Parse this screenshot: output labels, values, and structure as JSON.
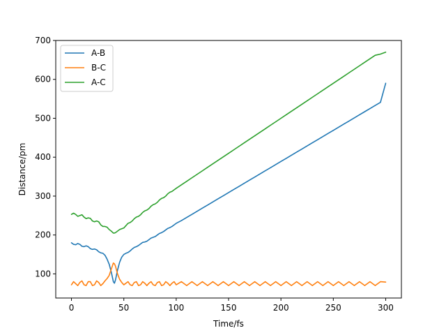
{
  "chart_data": {
    "type": "line",
    "title": "",
    "xlabel": "Time/fs",
    "ylabel": "Distance/pm",
    "xlim": [
      -15,
      315
    ],
    "ylim": [
      38,
      700
    ],
    "xticks": [
      0,
      50,
      100,
      150,
      200,
      250,
      300
    ],
    "yticks": [
      100,
      200,
      300,
      400,
      500,
      600,
      700
    ],
    "grid": false,
    "legend_position": "top-left",
    "series": [
      {
        "name": "A-B",
        "color": "#1f77b4",
        "x": [
          0,
          2,
          4,
          6,
          8,
          10,
          12,
          14,
          16,
          18,
          20,
          22,
          24,
          26,
          28,
          30,
          32,
          34,
          36,
          38,
          40,
          41,
          42,
          44,
          46,
          48,
          50,
          52,
          54,
          56,
          58,
          60,
          62,
          64,
          66,
          68,
          70,
          72,
          74,
          76,
          78,
          80,
          82,
          84,
          86,
          88,
          90,
          92,
          94,
          96,
          98,
          100,
          105,
          110,
          115,
          120,
          125,
          130,
          135,
          140,
          145,
          150,
          155,
          160,
          165,
          170,
          175,
          180,
          185,
          190,
          195,
          200,
          205,
          210,
          215,
          220,
          225,
          230,
          235,
          240,
          245,
          250,
          255,
          260,
          265,
          270,
          275,
          280,
          285,
          290,
          295,
          300
        ],
        "y": [
          180,
          176,
          175,
          178,
          176,
          171,
          170,
          172,
          170,
          165,
          163,
          164,
          162,
          157,
          154,
          153,
          148,
          138,
          125,
          105,
          80,
          76,
          84,
          110,
          130,
          143,
          150,
          153,
          155,
          159,
          164,
          168,
          170,
          173,
          177,
          181,
          182,
          184,
          188,
          192,
          194,
          196,
          200,
          204,
          206,
          209,
          213,
          217,
          219,
          222,
          226,
          230,
          237,
          245,
          253,
          261,
          269,
          277,
          285,
          293,
          301,
          309,
          317,
          325,
          333,
          341,
          349,
          357,
          365,
          373,
          381,
          389,
          397,
          405,
          413,
          421,
          429,
          437,
          445,
          453,
          461,
          469,
          477,
          485,
          493,
          501,
          509,
          517,
          525,
          533,
          541,
          590
        ]
      },
      {
        "name": "B-C",
        "color": "#ff7f0e",
        "x": [
          0,
          2,
          4,
          6,
          8,
          10,
          12,
          14,
          16,
          18,
          20,
          22,
          24,
          26,
          28,
          30,
          32,
          34,
          36,
          38,
          40,
          41,
          42,
          44,
          46,
          48,
          50,
          52,
          54,
          56,
          58,
          60,
          62,
          64,
          66,
          68,
          70,
          72,
          74,
          76,
          78,
          80,
          82,
          84,
          86,
          88,
          90,
          92,
          94,
          96,
          98,
          100,
          105,
          110,
          115,
          120,
          125,
          130,
          135,
          140,
          145,
          150,
          155,
          160,
          165,
          170,
          175,
          180,
          185,
          190,
          195,
          200,
          205,
          210,
          215,
          220,
          225,
          230,
          235,
          240,
          245,
          250,
          255,
          260,
          265,
          270,
          275,
          280,
          285,
          290,
          295,
          300
        ],
        "y": [
          72,
          80,
          75,
          70,
          78,
          82,
          72,
          70,
          80,
          80,
          70,
          72,
          82,
          78,
          70,
          75,
          82,
          88,
          96,
          112,
          128,
          126,
          120,
          100,
          86,
          78,
          72,
          76,
          80,
          72,
          70,
          78,
          80,
          70,
          72,
          80,
          76,
          70,
          76,
          80,
          72,
          70,
          78,
          80,
          70,
          72,
          80,
          76,
          70,
          76,
          80,
          72,
          80,
          70,
          80,
          70,
          80,
          70,
          80,
          70,
          80,
          70,
          80,
          70,
          80,
          70,
          80,
          70,
          80,
          70,
          80,
          70,
          80,
          70,
          80,
          70,
          80,
          70,
          80,
          70,
          80,
          70,
          80,
          70,
          80,
          70,
          80,
          70,
          80,
          70,
          80,
          79
        ]
      },
      {
        "name": "A-C",
        "color": "#2ca02c",
        "x": [
          0,
          2,
          4,
          6,
          8,
          10,
          12,
          14,
          16,
          18,
          20,
          22,
          24,
          26,
          28,
          30,
          32,
          34,
          36,
          38,
          40,
          41,
          42,
          44,
          46,
          48,
          50,
          52,
          54,
          56,
          58,
          60,
          62,
          64,
          66,
          68,
          70,
          72,
          74,
          76,
          78,
          80,
          82,
          84,
          86,
          88,
          90,
          92,
          94,
          96,
          98,
          100,
          105,
          110,
          115,
          120,
          125,
          130,
          135,
          140,
          145,
          150,
          155,
          160,
          165,
          170,
          175,
          180,
          185,
          190,
          195,
          200,
          205,
          210,
          215,
          220,
          225,
          230,
          235,
          240,
          245,
          250,
          255,
          260,
          265,
          270,
          275,
          280,
          285,
          290,
          295,
          300
        ],
        "y": [
          253,
          256,
          253,
          248,
          250,
          252,
          246,
          242,
          244,
          243,
          236,
          234,
          236,
          234,
          226,
          222,
          222,
          220,
          214,
          210,
          205,
          205,
          206,
          210,
          214,
          216,
          218,
          224,
          230,
          232,
          236,
          242,
          246,
          248,
          252,
          258,
          262,
          264,
          268,
          274,
          278,
          280,
          284,
          290,
          294,
          296,
          300,
          306,
          310,
          312,
          316,
          320,
          329,
          338,
          347,
          356,
          365,
          374,
          383,
          392,
          401,
          410,
          419,
          428,
          437,
          446,
          455,
          464,
          473,
          482,
          491,
          500,
          509,
          518,
          527,
          536,
          545,
          554,
          563,
          572,
          581,
          590,
          599,
          608,
          617,
          626,
          635,
          644,
          653,
          662,
          665,
          670
        ]
      }
    ]
  }
}
